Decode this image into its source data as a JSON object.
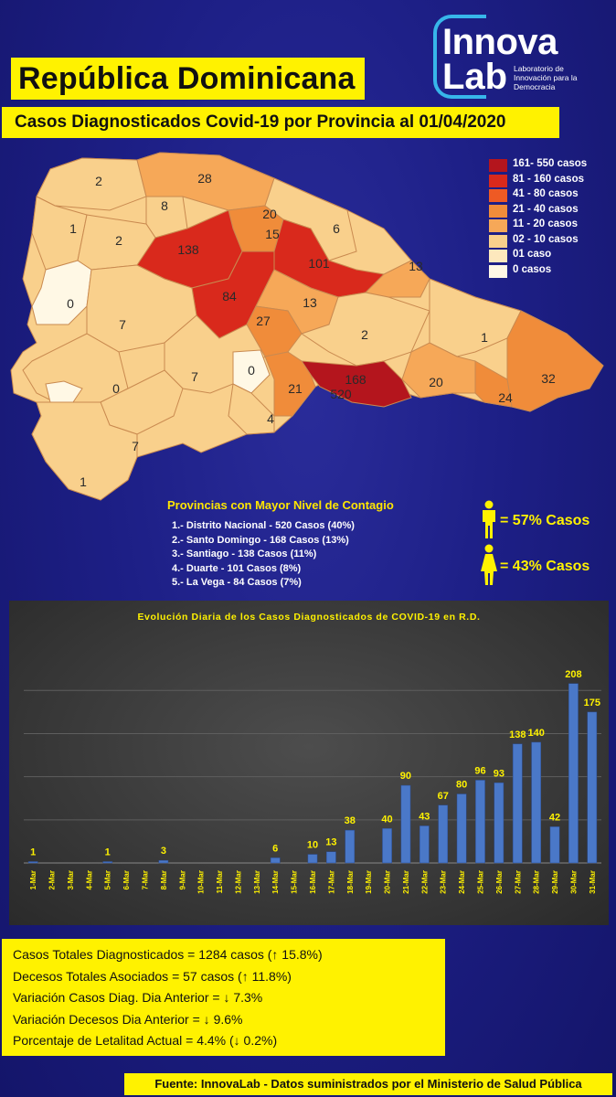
{
  "header": {
    "title": "República Dominicana",
    "subtitle": "Casos Diagnosticados Covid-19 por Provincia al 01/04/2020"
  },
  "logo": {
    "line1": "Innova",
    "line2": "Lab",
    "tagline": "Laboratorio de Innovación para la Democracia"
  },
  "legend": [
    {
      "label": "161- 550 casos",
      "color": "#b4151d"
    },
    {
      "label": "81 - 160 casos",
      "color": "#d9291c"
    },
    {
      "label": "41 - 80 casos",
      "color": "#ee5a24"
    },
    {
      "label": "21 - 40 casos",
      "color": "#f08c3a"
    },
    {
      "label": "11 - 20 casos",
      "color": "#f6a858"
    },
    {
      "label": "02 - 10 casos",
      "color": "#f9d08c"
    },
    {
      "label": "01 caso",
      "color": "#fde8bd"
    },
    {
      "label": "0 casos",
      "color": "#fff8e5"
    }
  ],
  "map_labels": [
    "2",
    "28",
    "8",
    "1",
    "2",
    "20",
    "15",
    "6",
    "138",
    "101",
    "13",
    "0",
    "84",
    "13",
    "7",
    "27",
    "2",
    "1",
    "7",
    "0",
    "168",
    "520",
    "21",
    "20",
    "32",
    "24",
    "0",
    "4",
    "7",
    "1"
  ],
  "top_provinces": {
    "title": "Provincias con Mayor Nivel de Contagio",
    "items": [
      "1.- Distrito Nacional - 520 Casos (40%)",
      "2.- Santo Domingo - 168 Casos (13%)",
      "3.- Santiago - 138 Casos (11%)",
      "4.- Duarte - 101 Casos (8%)",
      "5.- La Vega - 84 Casos (7%)"
    ]
  },
  "gender": {
    "male": "= 57% Casos",
    "female": "= 43% Casos"
  },
  "chart_data": {
    "type": "bar",
    "title": "Evolución Diaria de los Casos Diagnosticados de COVID-19 en R.D.",
    "categories": [
      "1-Mar",
      "2-Mar",
      "3-Mar",
      "4-Mar",
      "5-Mar",
      "6-Mar",
      "7-Mar",
      "8-Mar",
      "9-Mar",
      "10-Mar",
      "11-Mar",
      "12-Mar",
      "13-Mar",
      "14-Mar",
      "15-Mar",
      "16-Mar",
      "17-Mar",
      "18-Mar",
      "19-Mar",
      "20-Mar",
      "21-Mar",
      "22-Mar",
      "23-Mar",
      "24-Mar",
      "25-Mar",
      "26-Mar",
      "27-Mar",
      "28-Mar",
      "29-Mar",
      "30-Mar",
      "31-Mar"
    ],
    "values": [
      1,
      0,
      0,
      0,
      1,
      0,
      0,
      3,
      0,
      0,
      0,
      0,
      0,
      6,
      0,
      10,
      13,
      38,
      0,
      40,
      90,
      43,
      67,
      80,
      96,
      93,
      138,
      140,
      42,
      208,
      175
    ],
    "data_labels": [
      "1",
      "",
      "",
      "",
      "1",
      "",
      "",
      "3",
      "",
      "",
      "",
      "",
      "",
      "6",
      "",
      "10",
      "13",
      "38",
      "",
      "40",
      "90",
      "43",
      "67",
      "80",
      "96",
      "93",
      "138",
      "140",
      "42",
      "208",
      "175"
    ],
    "trendline": true,
    "ylim": [
      0,
      230
    ],
    "grid": true,
    "bar_color": "#4a78c8",
    "trend_color": "#e11b22",
    "label_color": "#fff200"
  },
  "stats": [
    "Casos Totales Diagnosticados = 1284 casos (↑ 15.8%)",
    "Decesos Totales Asociados = 57 casos (↑ 11.8%)",
    "Variación Casos Diag. Dia Anterior = ↓ 7.3%",
    "Variación Decesos Dia Anterior  = ↓ 9.6%",
    "Porcentaje de Letalitad Actual  = 4.4% (↓ 0.2%)"
  ],
  "footer": "Fuente: InnovaLab - Datos suministrados por el Ministerio de Salud Pública"
}
